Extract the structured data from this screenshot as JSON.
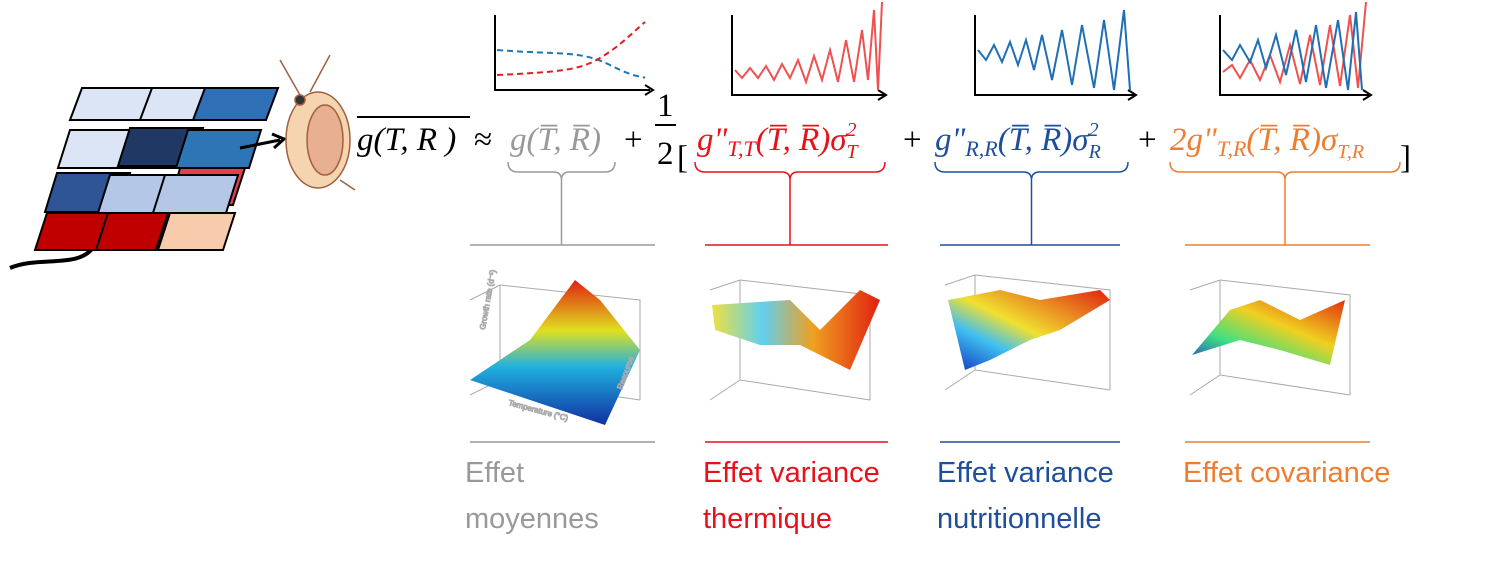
{
  "formula": {
    "lhs": "g(T, R )",
    "approx": "≈",
    "mean_term": "g(T̅, R̅)",
    "plus": "+",
    "half_num": "1",
    "half_den": "2",
    "open": "[",
    "close": "]",
    "thermal": {
      "base": "g\"",
      "sub": "T,T",
      "args": "(T̅, R̅)",
      "sigma": "σ",
      "sup": "2",
      "sigma_sub": "T"
    },
    "nutrient": {
      "base": "g\"",
      "sub": "R,R",
      "args": "(T̅, R̅)",
      "sigma": "σ",
      "sup": "2",
      "sigma_sub": "R"
    },
    "covariance": {
      "coef": "2",
      "base": "g\"",
      "sub": "T,R",
      "args": "(T̅, R̅)",
      "sigma": "σ",
      "sigma_sub": "T,R"
    }
  },
  "plot_labels": {
    "z": "Growth rate (d⁻¹)",
    "x": "Temperature (°C)",
    "y": "Resource"
  },
  "labels": {
    "means": [
      "Effet",
      "moyennes"
    ],
    "thermal": [
      "Effet variance",
      "thermique"
    ],
    "nutrient": [
      "Effet variance",
      "nutritionnelle"
    ],
    "covariance": [
      "Effet covariance"
    ]
  }
}
